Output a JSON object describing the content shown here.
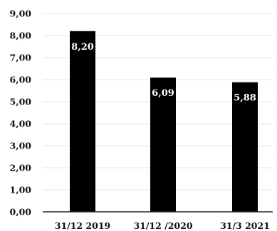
{
  "chart_data": {
    "type": "bar",
    "categories": [
      "31/12 2019",
      "31/12 /2020",
      "31/3 2021"
    ],
    "values": [
      8.2,
      6.09,
      5.88
    ],
    "data_labels": [
      "8,20",
      "6,09",
      "5,88"
    ],
    "title": "",
    "xlabel": "",
    "ylabel": "",
    "ylim": [
      0,
      9
    ],
    "yticks": [
      0,
      1,
      2,
      3,
      4,
      5,
      6,
      7,
      8,
      9
    ],
    "ytick_labels": [
      "0,00",
      "1,00",
      "2,00",
      "3,00",
      "4,00",
      "5,00",
      "6,00",
      "7,00",
      "8,00",
      "9,00"
    ],
    "grid": true,
    "legend": "none",
    "colors": {
      "bar": "#000000",
      "grid": "#e3e3e3",
      "axis": "#222222",
      "text": "#111111",
      "data_label": "#ffffff"
    }
  }
}
